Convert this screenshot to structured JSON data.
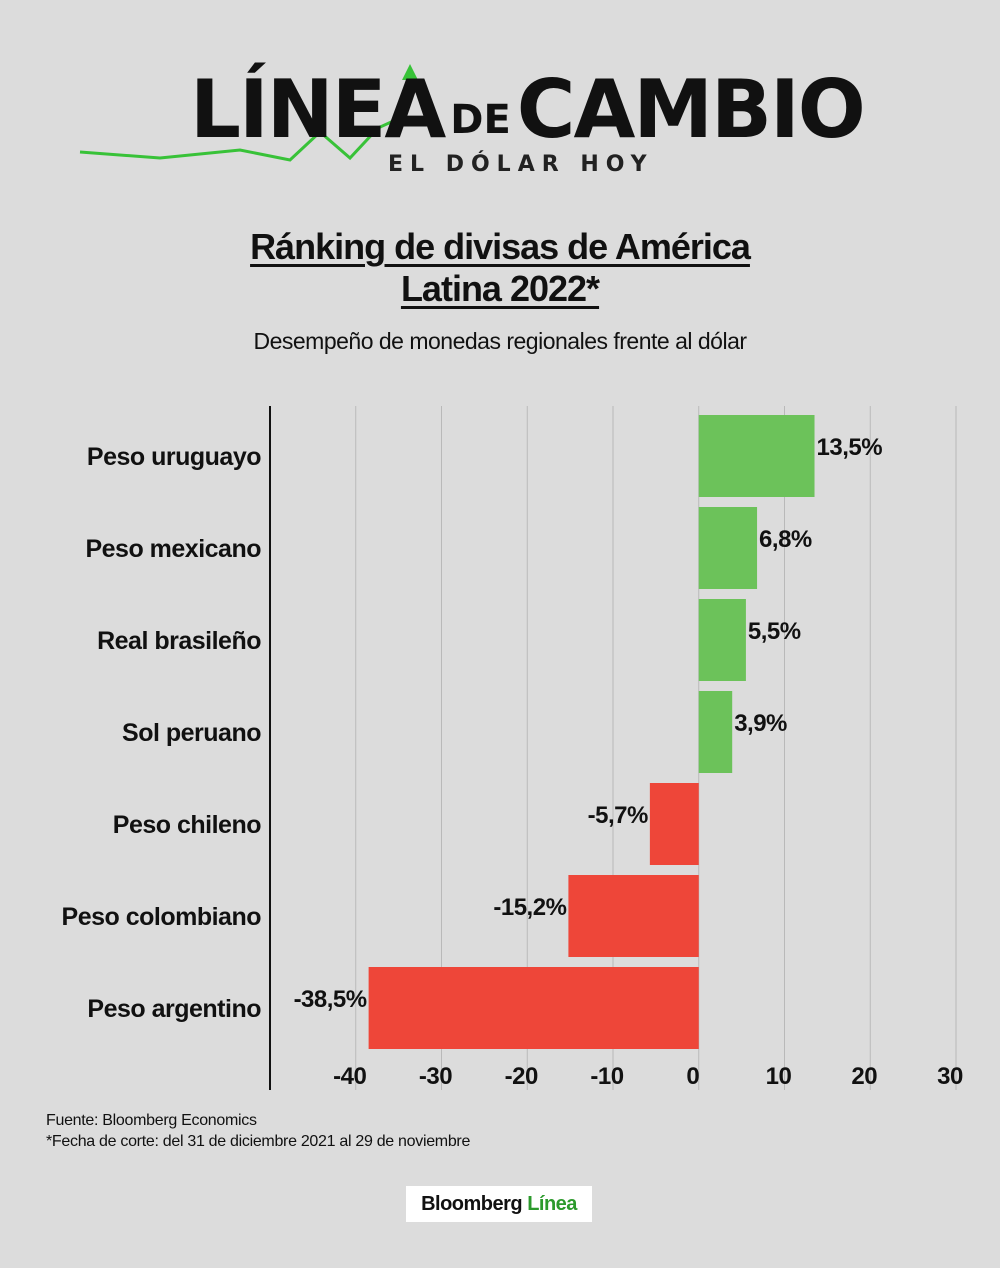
{
  "logo": {
    "main_left": "LÍNEA",
    "main_de": "DE",
    "main_right": "CAMBIO",
    "sub": "EL DÓLAR HOY",
    "accent_color": "#38c238"
  },
  "header": {
    "title_line1": "Ránking de divisas de América",
    "title_line2": "Latina 2022*",
    "subtitle": "Desempeño de monedas regionales frente al dólar"
  },
  "chart_data": {
    "type": "bar",
    "orientation": "horizontal",
    "categories": [
      "Peso uruguayo",
      "Peso mexicano",
      "Real brasileño",
      "Sol peruano",
      "Peso chileno",
      "Peso colombiano",
      "Peso argentino"
    ],
    "values": [
      13.5,
      6.8,
      5.5,
      3.9,
      -5.7,
      -15.2,
      -38.5
    ],
    "value_labels": [
      "13,5%",
      "6,8%",
      "5,5%",
      "3,9%",
      "-5,7%",
      "-15,2%",
      "-38,5%"
    ],
    "xlim": [
      -50,
      30
    ],
    "xticks": [
      -40,
      -30,
      -20,
      -10,
      0,
      10,
      20,
      30
    ],
    "xtick_labels": [
      "-40",
      "-30",
      "-20",
      "-10",
      "0",
      "10",
      "20",
      "30"
    ],
    "grid": true,
    "positive_color": "#6cc25a",
    "negative_color": "#ee4639"
  },
  "footer": {
    "source": "Fuente: Bloomberg Economics",
    "note": "*Fecha de corte: del 31 de diciembre 2021 al 29 de noviembre"
  },
  "brand": {
    "name": "Bloomberg",
    "accent": "Línea"
  }
}
